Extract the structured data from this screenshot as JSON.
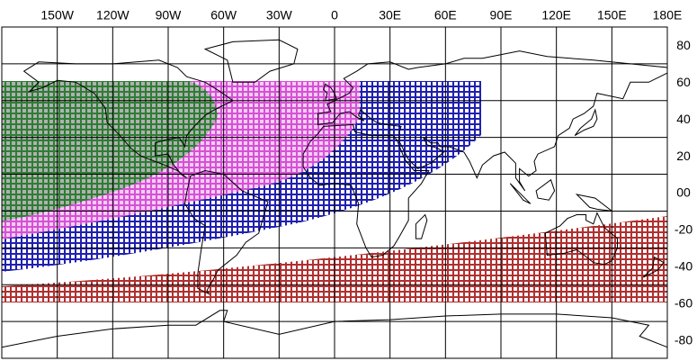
{
  "map": {
    "lon_labels": [
      "150W",
      "120W",
      "90W",
      "60W",
      "30W",
      "0",
      "30E",
      "60E",
      "90E",
      "120E",
      "150E",
      "180E"
    ],
    "lat_labels": [
      "80",
      "60",
      "40",
      "20",
      "00",
      "-20",
      "-40",
      "-60",
      "-80"
    ]
  }
}
